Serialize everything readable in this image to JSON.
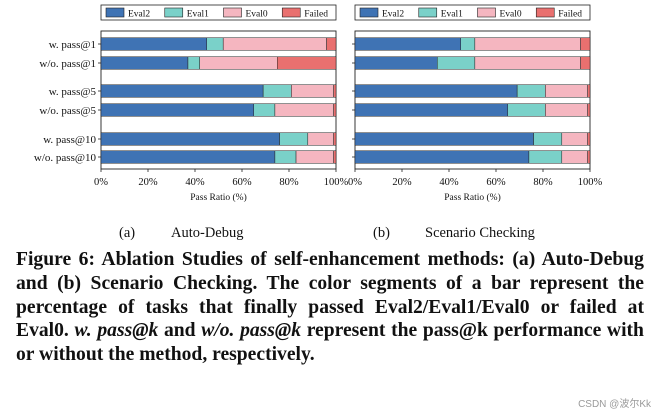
{
  "legend": [
    {
      "label": "Eval2",
      "color": "#3f73b4"
    },
    {
      "label": "Eval1",
      "color": "#7ad1c9"
    },
    {
      "label": "Eval0",
      "color": "#f5b6c0"
    },
    {
      "label": "Failed",
      "color": "#e9706f"
    }
  ],
  "chart_data": [
    {
      "type": "bar",
      "orientation": "horizontal",
      "stacked": true,
      "subcaption": {
        "letter": "(a)",
        "title": "Auto-Debug"
      },
      "xlabel": "Pass Ratio (%)",
      "xlim": [
        0,
        100
      ],
      "xticks": [
        "0%",
        "20%",
        "40%",
        "60%",
        "80%",
        "100%"
      ],
      "categories": [
        "w. pass@1",
        "w/o. pass@1",
        "w. pass@5",
        "w/o. pass@5",
        "w. pass@10",
        "w/o. pass@10"
      ],
      "series": [
        {
          "name": "Eval2",
          "values": [
            45,
            37,
            69,
            65,
            76,
            74
          ]
        },
        {
          "name": "Eval1",
          "values": [
            7,
            5,
            12,
            9,
            12,
            9
          ]
        },
        {
          "name": "Eval0",
          "values": [
            44,
            33,
            18,
            25,
            11,
            16
          ]
        },
        {
          "name": "Failed",
          "values": [
            4,
            25,
            1,
            1,
            1,
            1
          ]
        }
      ]
    },
    {
      "type": "bar",
      "orientation": "horizontal",
      "stacked": true,
      "subcaption": {
        "letter": "(b)",
        "title": "Scenario Checking"
      },
      "xlabel": "Pass Ratio (%)",
      "xlim": [
        0,
        100
      ],
      "xticks": [
        "0%",
        "20%",
        "40%",
        "60%",
        "80%",
        "100%"
      ],
      "categories": [
        "w. pass@1",
        "w/o. pass@1",
        "w. pass@5",
        "w/o. pass@5",
        "w. pass@10",
        "w/o. pass@10"
      ],
      "series": [
        {
          "name": "Eval2",
          "values": [
            45,
            35,
            69,
            65,
            76,
            74
          ]
        },
        {
          "name": "Eval1",
          "values": [
            6,
            16,
            12,
            16,
            12,
            14
          ]
        },
        {
          "name": "Eval0",
          "values": [
            45,
            45,
            18,
            18,
            11,
            11
          ]
        },
        {
          "name": "Failed",
          "values": [
            4,
            4,
            1,
            1,
            1,
            1
          ]
        }
      ]
    }
  ],
  "caption": {
    "figure_label": "Figure 6:",
    "part1": "Ablation Studies of self-enhancement methods: (a) Auto-Debug and (b) Scenario Checking. The color segments of a bar represent the percentage of tasks that finally passed Eval2/Eval1/Eval0 or failed at Eval0.",
    "term1": "w. pass@k",
    "part2": "and",
    "term2": "w/o. pass@k",
    "part3": "represent the pass@k performance with or without the method, respectively."
  },
  "watermark": "CSDN @波尔Kk"
}
